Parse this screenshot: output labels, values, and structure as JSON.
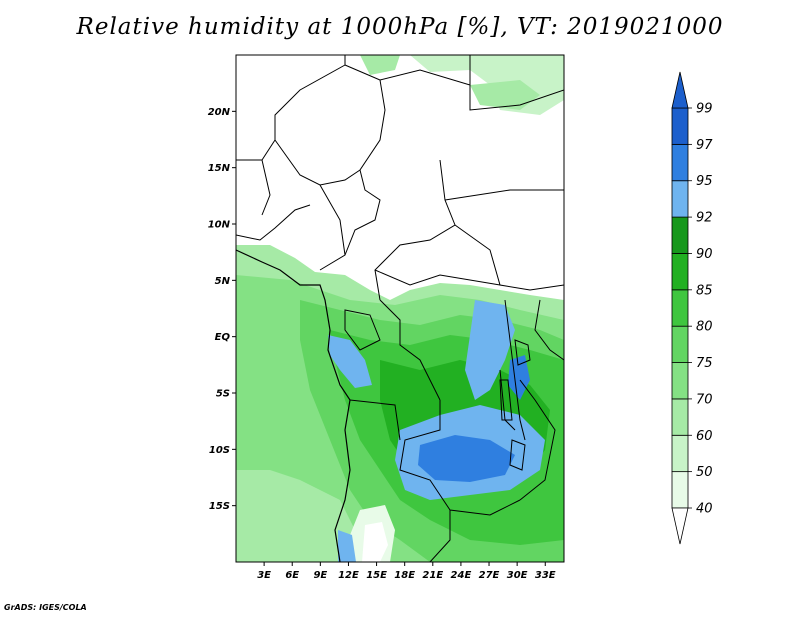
{
  "title": "Relative humidity at 1000hPa [%], VT: 2019021000",
  "credit": "GrADS: IGES/COLA",
  "map": {
    "lat_range": [
      -20,
      25
    ],
    "lon_range": [
      0,
      35
    ],
    "lat_ticks": [
      {
        "value": 20,
        "label": "20N"
      },
      {
        "value": 15,
        "label": "15N"
      },
      {
        "value": 10,
        "label": "10N"
      },
      {
        "value": 5,
        "label": "5N"
      },
      {
        "value": 0,
        "label": "EQ"
      },
      {
        "value": -5,
        "label": "5S"
      },
      {
        "value": -10,
        "label": "10S"
      },
      {
        "value": -15,
        "label": "15S"
      }
    ],
    "lon_ticks": [
      {
        "value": 3,
        "label": "3E"
      },
      {
        "value": 6,
        "label": "6E"
      },
      {
        "value": 9,
        "label": "9E"
      },
      {
        "value": 12,
        "label": "12E"
      },
      {
        "value": 15,
        "label": "15E"
      },
      {
        "value": 18,
        "label": "18E"
      },
      {
        "value": 21,
        "label": "21E"
      },
      {
        "value": 24,
        "label": "24E"
      },
      {
        "value": 27,
        "label": "27E"
      },
      {
        "value": 30,
        "label": "30E"
      },
      {
        "value": 33,
        "label": "33E"
      }
    ]
  },
  "colorbar": {
    "levels": [
      "40",
      "50",
      "60",
      "70",
      "75",
      "80",
      "85",
      "90",
      "92",
      "95",
      "97",
      "99"
    ],
    "colors": [
      "#ffffff",
      "#e8fbe8",
      "#c8f3c8",
      "#a6eaa6",
      "#84e184",
      "#62d562",
      "#3fc63f",
      "#22b022",
      "#17981c",
      "#6fb4ef",
      "#2f7fe0",
      "#1c5fcc"
    ]
  },
  "legend_palette": {
    "land_dry": "#ffffff",
    "rh_50": "#e8fbe8",
    "rh_70": "#a6eaa6",
    "rh_80": "#62d562",
    "rh_90": "#22b022",
    "rh_95": "#6fb4ef",
    "rh_97": "#2f7fe0",
    "border": "#000000"
  }
}
